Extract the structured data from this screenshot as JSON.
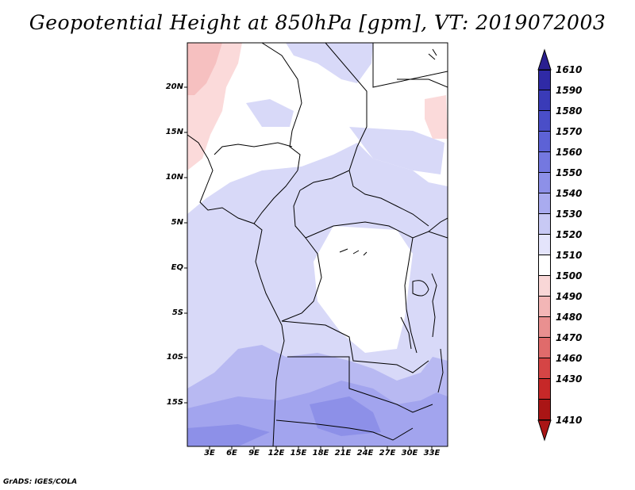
{
  "title": "Geopotential Height at 850hPa [gpm], VT: 2019072003",
  "credit": "GrADS: IGES/COLA",
  "map": {
    "lat_labels": [
      "20N",
      "15N",
      "10N",
      "5N",
      "EQ",
      "5S",
      "10S",
      "15S"
    ],
    "lon_labels": [
      "3E",
      "6E",
      "9E",
      "12E",
      "15E",
      "18E",
      "21E",
      "24E",
      "27E",
      "30E",
      "33E"
    ]
  },
  "colorbar": {
    "labels": [
      "1610",
      "1590",
      "1580",
      "1570",
      "1560",
      "1550",
      "1540",
      "1530",
      "1520",
      "1510",
      "1500",
      "1490",
      "1480",
      "1470",
      "1460",
      "1430",
      "1410"
    ],
    "colors": [
      "#2a1f90",
      "#2f2aa6",
      "#3a3bb8",
      "#4a4ec8",
      "#5d62d6",
      "#7478e0",
      "#8d90e8",
      "#a9abef",
      "#c8c9f4",
      "#e4e4fb",
      "#ffffff",
      "#f9d7d7",
      "#f3b6b6",
      "#e99090",
      "#e06b6b",
      "#d54545",
      "#c62828",
      "#aa1515"
    ]
  }
}
